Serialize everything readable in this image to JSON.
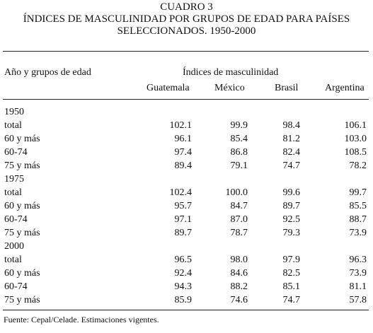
{
  "header": {
    "cuadro": "CUADRO 3",
    "title_line1": "ÍNDICES DE MASCULINIDAD POR GRUPOS DE EDAD PARA PAÍSES",
    "title_line2": "SELECCIONADOS. 1950-2000"
  },
  "table": {
    "stub_header": "Año y grupos de edad",
    "group_header": "Índices de masculinidad",
    "columns": [
      "Guatemala",
      "México",
      "Brasil",
      "Argentina"
    ],
    "rows": [
      {
        "label": "1950",
        "values": [
          "",
          "",
          "",
          ""
        ]
      },
      {
        "label": "total",
        "values": [
          "102.1",
          "99.9",
          "98.4",
          "106.1"
        ]
      },
      {
        "label": "60 y más",
        "values": [
          "96.1",
          "85.4",
          "81.2",
          "103.0"
        ]
      },
      {
        "label": "60-74",
        "values": [
          "97.4",
          "86.8",
          "82.4",
          "108.5"
        ]
      },
      {
        "label": "75 y más",
        "values": [
          "89.4",
          "79.1",
          "74.7",
          "78.2"
        ]
      },
      {
        "label": "1975",
        "values": [
          "",
          "",
          "",
          ""
        ]
      },
      {
        "label": "total",
        "values": [
          "102.4",
          "100.0",
          "99.6",
          "99.7"
        ]
      },
      {
        "label": "60 y más",
        "values": [
          "95.7",
          "84.7",
          "89.7",
          "85.5"
        ]
      },
      {
        "label": "60-74",
        "values": [
          "97.1",
          "87.0",
          "92.5",
          "88.7"
        ]
      },
      {
        "label": "75 y más",
        "values": [
          "89.7",
          "78.7",
          "79.3",
          "73.9"
        ]
      },
      {
        "label": "2000",
        "values": [
          "",
          "",
          "",
          ""
        ]
      },
      {
        "label": "total",
        "values": [
          "96.5",
          "98.0",
          "97.9",
          "96.3"
        ]
      },
      {
        "label": "60 y más",
        "values": [
          "92.4",
          "84.6",
          "82.5",
          "73.9"
        ]
      },
      {
        "label": "60-74",
        "values": [
          "94.3",
          "88.2",
          "85.1",
          "81.1"
        ]
      },
      {
        "label": "75 y más",
        "values": [
          "85.9",
          "74.6",
          "74.7",
          "57.8"
        ]
      }
    ]
  },
  "footnote": "Fuente: Cepal/Celade. Estimaciones vigentes."
}
